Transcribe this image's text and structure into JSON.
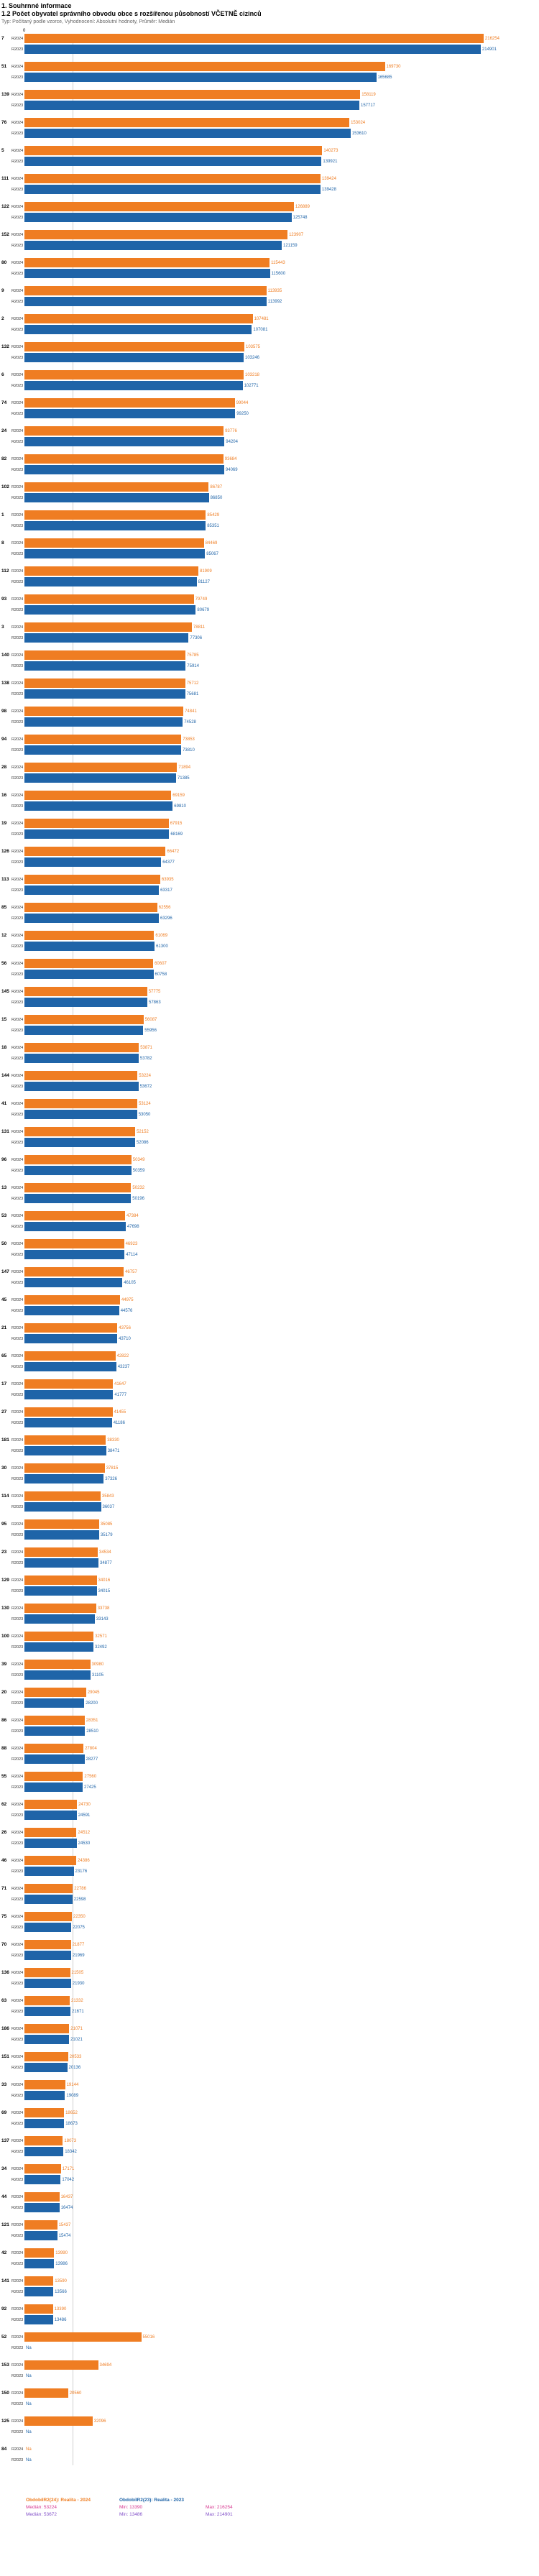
{
  "header": {
    "title": "1. Souhrnné informace",
    "subtitle": "1.2 Počet obyvatel správního obvodu obce s rozšířenou působností VČETNĚ cizinců",
    "meta": "Typ: Počítaný podle vzorce, Vyhodnocení: Absolutní hodnoty, Průměr: Medián"
  },
  "chart_data": {
    "type": "bar",
    "orientation": "horizontal",
    "title": "1.2 Počet obyvatel správního obvodu obce s rozšířenou působností VČETNĚ cizinců",
    "series_labels": [
      "R2024",
      "R2023"
    ],
    "legend_position": "bottom",
    "colors": {
      "r2024": "#ef7d22",
      "r2023": "#1f64a8",
      "stats_2024": "#d6368f",
      "stats_2023": "#8250c8"
    },
    "axis": {
      "origin_label": "0",
      "max": 220000,
      "gridline_value": 22500
    },
    "na_label": "Na",
    "rows": [
      {
        "code": "7",
        "r2024": 216254,
        "r2023": 214901
      },
      {
        "code": "51",
        "r2024": 169730,
        "r2023": 165685
      },
      {
        "code": "139",
        "r2024": 158119,
        "r2023": 157717
      },
      {
        "code": "76",
        "r2024": 153024,
        "r2023": 153610
      },
      {
        "code": "5",
        "r2024": 140273,
        "r2023": 139921
      },
      {
        "code": "111",
        "r2024": 139424,
        "r2023": 139428
      },
      {
        "code": "122",
        "r2024": 126889,
        "r2023": 125748
      },
      {
        "code": "152",
        "r2024": 123907,
        "r2023": 121159
      },
      {
        "code": "80",
        "r2024": 115443,
        "r2023": 115600
      },
      {
        "code": "9",
        "r2024": 113935,
        "r2023": 113992
      },
      {
        "code": "2",
        "r2024": 107481,
        "r2023": 107081
      },
      {
        "code": "132",
        "r2024": 103575,
        "r2023": 103246
      },
      {
        "code": "6",
        "r2024": 103218,
        "r2023": 102771
      },
      {
        "code": "74",
        "r2024": 99044,
        "r2023": 99250
      },
      {
        "code": "24",
        "r2024": 93776,
        "r2023": 94204
      },
      {
        "code": "82",
        "r2024": 93684,
        "r2023": 94069
      },
      {
        "code": "102",
        "r2024": 86787,
        "r2023": 86850
      },
      {
        "code": "1",
        "r2024": 85429,
        "r2023": 85351
      },
      {
        "code": "8",
        "r2024": 84469,
        "r2023": 85067
      },
      {
        "code": "112",
        "r2024": 81909,
        "r2023": 81127
      },
      {
        "code": "93",
        "r2024": 79749,
        "r2023": 80679
      },
      {
        "code": "3",
        "r2024": 78811,
        "r2023": 77306
      },
      {
        "code": "140",
        "r2024": 75785,
        "r2023": 75914
      },
      {
        "code": "138",
        "r2024": 75712,
        "r2023": 75681
      },
      {
        "code": "98",
        "r2024": 74841,
        "r2023": 74528
      },
      {
        "code": "94",
        "r2024": 73853,
        "r2023": 73810
      },
      {
        "code": "28",
        "r2024": 71894,
        "r2023": 71385
      },
      {
        "code": "16",
        "r2024": 69159,
        "r2023": 69810
      },
      {
        "code": "19",
        "r2024": 67915,
        "r2023": 68169
      },
      {
        "code": "126",
        "r2024": 66472,
        "r2023": 64377
      },
      {
        "code": "113",
        "r2024": 63935,
        "r2023": 63317
      },
      {
        "code": "85",
        "r2024": 62556,
        "r2023": 63296
      },
      {
        "code": "12",
        "r2024": 61069,
        "r2023": 61300
      },
      {
        "code": "56",
        "r2024": 60607,
        "r2023": 60758
      },
      {
        "code": "145",
        "r2024": 57775,
        "r2023": 57863
      },
      {
        "code": "15",
        "r2024": 56087,
        "r2023": 55956
      },
      {
        "code": "18",
        "r2024": 53871,
        "r2023": 53782
      },
      {
        "code": "144",
        "r2024": 53224,
        "r2023": 53672
      },
      {
        "code": "41",
        "r2024": 53124,
        "r2023": 53050
      },
      {
        "code": "131",
        "r2024": 52152,
        "r2023": 52086
      },
      {
        "code": "96",
        "r2024": 50349,
        "r2023": 50359
      },
      {
        "code": "13",
        "r2024": 50232,
        "r2023": 50196
      },
      {
        "code": "53",
        "r2024": 47384,
        "r2023": 47698
      },
      {
        "code": "50",
        "r2024": 46923,
        "r2023": 47114
      },
      {
        "code": "147",
        "r2024": 46757,
        "r2023": 46105
      },
      {
        "code": "45",
        "r2024": 44975,
        "r2023": 44576
      },
      {
        "code": "21",
        "r2024": 43756,
        "r2023": 43710
      },
      {
        "code": "65",
        "r2024": 42822,
        "r2023": 43237
      },
      {
        "code": "17",
        "r2024": 41647,
        "r2023": 41777
      },
      {
        "code": "27",
        "r2024": 41455,
        "r2023": 41186
      },
      {
        "code": "181",
        "r2024": 38330,
        "r2023": 38471
      },
      {
        "code": "30",
        "r2024": 37815,
        "r2023": 37326
      },
      {
        "code": "114",
        "r2024": 35843,
        "r2023": 36037
      },
      {
        "code": "95",
        "r2024": 35085,
        "r2023": 35179
      },
      {
        "code": "23",
        "r2024": 34534,
        "r2023": 34877
      },
      {
        "code": "129",
        "r2024": 34016,
        "r2023": 34015
      },
      {
        "code": "130",
        "r2024": 33738,
        "r2023": 33143
      },
      {
        "code": "100",
        "r2024": 32571,
        "r2023": 32492
      },
      {
        "code": "39",
        "r2024": 30980,
        "r2023": 31105
      },
      {
        "code": "20",
        "r2024": 29045,
        "r2023": 28200
      },
      {
        "code": "86",
        "r2024": 28351,
        "r2023": 28510
      },
      {
        "code": "88",
        "r2024": 27804,
        "r2023": 28277
      },
      {
        "code": "55",
        "r2024": 27560,
        "r2023": 27425
      },
      {
        "code": "62",
        "r2024": 24730,
        "r2023": 24591
      },
      {
        "code": "26",
        "r2024": 24512,
        "r2023": 24530
      },
      {
        "code": "46",
        "r2024": 24386,
        "r2023": 23176
      },
      {
        "code": "71",
        "r2024": 22786,
        "r2023": 22598
      },
      {
        "code": "75",
        "r2024": 22350,
        "r2023": 22075
      },
      {
        "code": "70",
        "r2024": 21877,
        "r2023": 21969
      },
      {
        "code": "136",
        "r2024": 21505,
        "r2023": 21930
      },
      {
        "code": "63",
        "r2024": 21332,
        "r2023": 21671
      },
      {
        "code": "186",
        "r2024": 21071,
        "r2023": 21021
      },
      {
        "code": "151",
        "r2024": 20533,
        "r2023": 20136
      },
      {
        "code": "33",
        "r2024": 19144,
        "r2023": 19089
      },
      {
        "code": "69",
        "r2024": 18652,
        "r2023": 18673
      },
      {
        "code": "137",
        "r2024": 18073,
        "r2023": 18342
      },
      {
        "code": "34",
        "r2024": 17171,
        "r2023": 17042
      },
      {
        "code": "44",
        "r2024": 16437,
        "r2023": 16474
      },
      {
        "code": "121",
        "r2024": 15437,
        "r2023": 15474
      },
      {
        "code": "42",
        "r2024": 13990,
        "r2023": 13986
      },
      {
        "code": "141",
        "r2024": 13590,
        "r2023": 13566
      },
      {
        "code": "92",
        "r2024": 13390,
        "r2023": 13486
      },
      {
        "code": "52",
        "r2024": 55016,
        "r2023": null
      },
      {
        "code": "153",
        "r2024": 34694,
        "r2023": null
      },
      {
        "code": "150",
        "r2024": 20560,
        "r2023": null
      },
      {
        "code": "125",
        "r2024": 32096,
        "r2023": null
      },
      {
        "code": "84",
        "r2024": null,
        "r2023": null
      }
    ]
  },
  "footer": {
    "legend_2024": "ObdobíIR2(24): Realita - 2024",
    "legend_2023": "ObdobíIR2(23): Realita - 2023",
    "stats_2024": {
      "median": "Medián: 53224",
      "min": "Min: 13390",
      "max": "Max: 216254"
    },
    "stats_2023": {
      "median": "Medián: 53672",
      "min": "Min: 13486",
      "max": "Max: 214901"
    }
  }
}
